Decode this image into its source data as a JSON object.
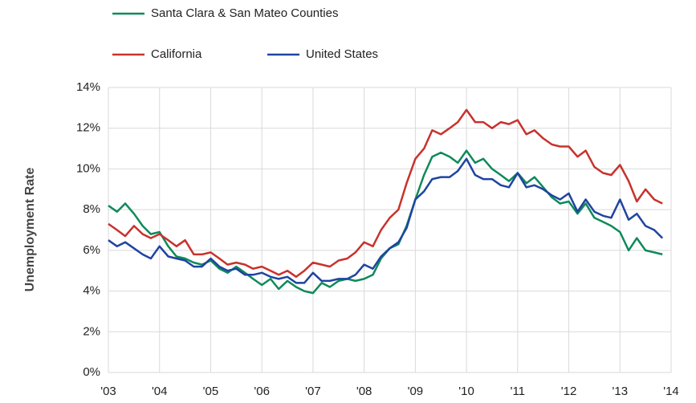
{
  "chart_data": {
    "type": "line",
    "ylabel": "Unemployment Rate",
    "x": [
      2003,
      2003.17,
      2003.33,
      2003.5,
      2003.67,
      2003.83,
      2004,
      2004.17,
      2004.33,
      2004.5,
      2004.67,
      2004.83,
      2005,
      2005.17,
      2005.33,
      2005.5,
      2005.67,
      2005.83,
      2006,
      2006.17,
      2006.33,
      2006.5,
      2006.67,
      2006.83,
      2007,
      2007.17,
      2007.33,
      2007.5,
      2007.67,
      2007.83,
      2008,
      2008.17,
      2008.33,
      2008.5,
      2008.67,
      2008.83,
      2009,
      2009.17,
      2009.33,
      2009.5,
      2009.67,
      2009.83,
      2010,
      2010.17,
      2010.33,
      2010.5,
      2010.67,
      2010.83,
      2011,
      2011.17,
      2011.33,
      2011.5,
      2011.67,
      2011.83,
      2012,
      2012.17,
      2012.33,
      2012.5,
      2012.67,
      2012.83,
      2013,
      2013.17,
      2013.33,
      2013.5,
      2013.67,
      2013.83
    ],
    "series": [
      {
        "name": "Santa Clara & San Mateo Counties",
        "color": "#0f8a5a",
        "values": [
          8.2,
          7.9,
          8.3,
          7.8,
          7.2,
          6.8,
          6.9,
          6.2,
          5.7,
          5.6,
          5.4,
          5.3,
          5.5,
          5.1,
          4.9,
          5.2,
          4.9,
          4.6,
          4.3,
          4.6,
          4.1,
          4.5,
          4.2,
          4.0,
          3.9,
          4.4,
          4.2,
          4.5,
          4.6,
          4.5,
          4.6,
          4.8,
          5.6,
          6.1,
          6.3,
          7.2,
          8.5,
          9.7,
          10.6,
          10.8,
          10.6,
          10.3,
          10.9,
          10.3,
          10.5,
          10.0,
          9.7,
          9.4,
          9.8,
          9.3,
          9.6,
          9.1,
          8.6,
          8.3,
          8.4,
          7.8,
          8.3,
          7.6,
          7.4,
          7.2,
          6.9,
          6.0,
          6.6,
          6.0,
          5.9,
          5.8
        ]
      },
      {
        "name": "California",
        "color": "#c8322d",
        "values": [
          7.3,
          7.0,
          6.7,
          7.2,
          6.8,
          6.6,
          6.8,
          6.5,
          6.2,
          6.5,
          5.8,
          5.8,
          5.9,
          5.6,
          5.3,
          5.4,
          5.3,
          5.1,
          5.2,
          5.0,
          4.8,
          5.0,
          4.7,
          5.0,
          5.4,
          5.3,
          5.2,
          5.5,
          5.6,
          5.9,
          6.4,
          6.2,
          7.0,
          7.6,
          8.0,
          9.3,
          10.5,
          11.0,
          11.9,
          11.7,
          12.0,
          12.3,
          12.9,
          12.3,
          12.3,
          12.0,
          12.3,
          12.2,
          12.4,
          11.7,
          11.9,
          11.5,
          11.2,
          11.1,
          11.1,
          10.6,
          10.9,
          10.1,
          9.8,
          9.7,
          10.2,
          9.4,
          8.4,
          9.0,
          8.5,
          8.3
        ]
      },
      {
        "name": "United States",
        "color": "#1f44a0",
        "values": [
          6.5,
          6.2,
          6.4,
          6.1,
          5.8,
          5.6,
          6.2,
          5.7,
          5.6,
          5.5,
          5.2,
          5.2,
          5.6,
          5.2,
          5.0,
          5.1,
          4.8,
          4.8,
          4.9,
          4.7,
          4.6,
          4.7,
          4.4,
          4.4,
          4.9,
          4.5,
          4.5,
          4.6,
          4.6,
          4.8,
          5.3,
          5.1,
          5.7,
          6.1,
          6.4,
          7.1,
          8.5,
          8.9,
          9.5,
          9.6,
          9.6,
          9.9,
          10.5,
          9.7,
          9.5,
          9.5,
          9.2,
          9.1,
          9.8,
          9.1,
          9.2,
          9.0,
          8.7,
          8.5,
          8.8,
          7.9,
          8.5,
          7.9,
          7.7,
          7.6,
          8.5,
          7.5,
          7.8,
          7.2,
          7.0,
          6.6
        ]
      }
    ],
    "xlim": [
      2003,
      2014
    ],
    "xticks": [
      {
        "value": 2003,
        "label": "'03"
      },
      {
        "value": 2004,
        "label": "'04"
      },
      {
        "value": 2005,
        "label": "'05"
      },
      {
        "value": 2006,
        "label": "'06"
      },
      {
        "value": 2007,
        "label": "'07"
      },
      {
        "value": 2008,
        "label": "'08"
      },
      {
        "value": 2009,
        "label": "'09"
      },
      {
        "value": 2010,
        "label": "'10"
      },
      {
        "value": 2011,
        "label": "'11"
      },
      {
        "value": 2012,
        "label": "'12"
      },
      {
        "value": 2013,
        "label": "'13"
      },
      {
        "value": 2014,
        "label": "'14"
      }
    ],
    "ylim": [
      0,
      14
    ],
    "yticks": [
      {
        "value": 0,
        "label": "0%"
      },
      {
        "value": 2,
        "label": "2%"
      },
      {
        "value": 4,
        "label": "4%"
      },
      {
        "value": 6,
        "label": "6%"
      },
      {
        "value": 8,
        "label": "8%"
      },
      {
        "value": 10,
        "label": "10%"
      },
      {
        "value": 12,
        "label": "12%"
      },
      {
        "value": 14,
        "label": "14%"
      }
    ],
    "grid": true
  }
}
